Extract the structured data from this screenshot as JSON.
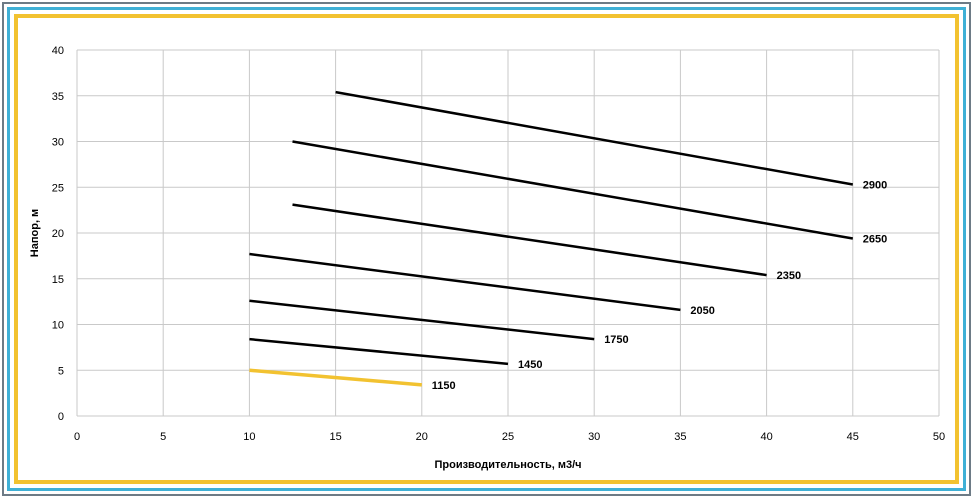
{
  "chart_data": {
    "type": "line",
    "title": "",
    "xlabel": "Производительность, м3/ч",
    "ylabel": "Напор, м",
    "xlim": [
      0,
      50
    ],
    "ylim": [
      0,
      40
    ],
    "x_ticks": [
      "0",
      "5",
      "10",
      "15",
      "20",
      "25",
      "30",
      "35",
      "40",
      "45",
      "50"
    ],
    "y_ticks": [
      "0",
      "5",
      "10",
      "15",
      "20",
      "25",
      "30",
      "35",
      "40"
    ],
    "grid": true,
    "legend": "none",
    "series": [
      {
        "name": "2900",
        "color": "#000000",
        "x": [
          15,
          45
        ],
        "y": [
          35.4,
          25.3
        ]
      },
      {
        "name": "2650",
        "color": "#000000",
        "x": [
          12.5,
          45
        ],
        "y": [
          30.0,
          19.4
        ]
      },
      {
        "name": "2350",
        "color": "#000000",
        "x": [
          12.5,
          40
        ],
        "y": [
          23.1,
          15.4
        ]
      },
      {
        "name": "2050",
        "color": "#000000",
        "x": [
          10,
          35
        ],
        "y": [
          17.7,
          11.6
        ]
      },
      {
        "name": "1750",
        "color": "#000000",
        "x": [
          10,
          30
        ],
        "y": [
          12.6,
          8.4
        ]
      },
      {
        "name": "1450",
        "color": "#000000",
        "x": [
          10,
          25
        ],
        "y": [
          8.4,
          5.7
        ]
      },
      {
        "name": "1150",
        "color": "#f2c230",
        "x": [
          10,
          20
        ],
        "y": [
          5.0,
          3.4
        ]
      }
    ]
  }
}
